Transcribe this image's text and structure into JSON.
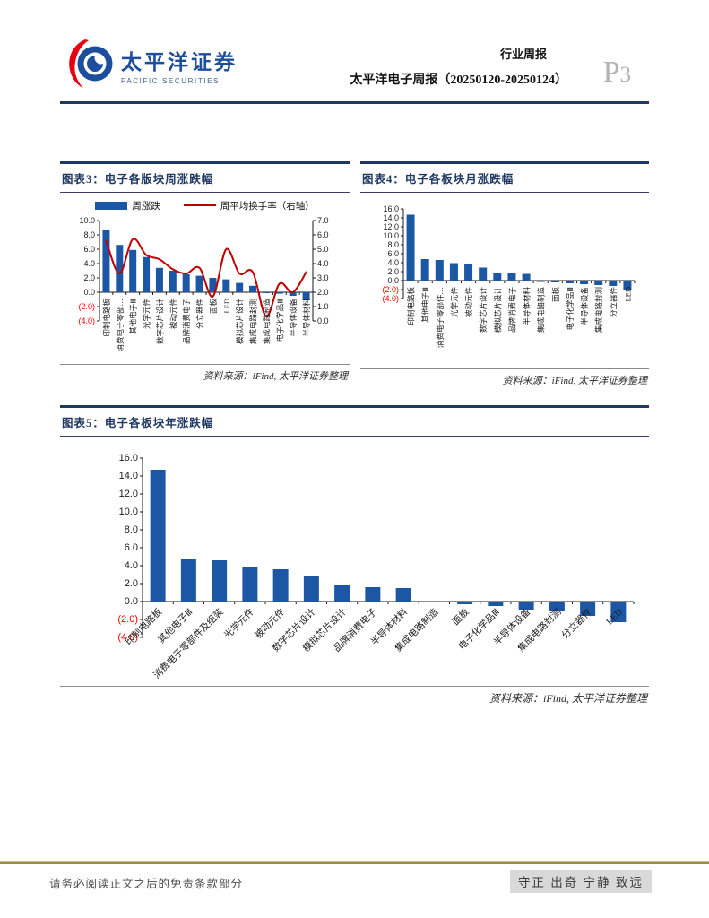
{
  "header": {
    "brand_cn": "太平洋证券",
    "brand_en": "PACIFIC SECURITIES",
    "report_type": "行业周报",
    "report_title": "太平洋电子周报（20250120-20250124）",
    "page_label": "P",
    "page_number": "3"
  },
  "footer": {
    "disclaimer": "请务必阅读正文之后的免责条款部分",
    "motto": "守正 出奇 宁静 致远"
  },
  "colors": {
    "bar_blue": "#1c57a5",
    "line_red": "#c00000",
    "axis_black": "#1a1a1a",
    "negative_label_red": "#ff0000",
    "title_navy": "#1f3864",
    "footer_gold": "#9a8b4a"
  },
  "chart_data": [
    {
      "id": "c3",
      "type": "bar",
      "title": "图表3：电子各版块周涨跌幅",
      "legend": [
        {
          "label": "周涨跌",
          "type": "bar",
          "color": "#1c57a5"
        },
        {
          "label": "周平均换手率（右轴）",
          "type": "line",
          "color": "#c00000"
        }
      ],
      "categories": [
        "印制电路板",
        "消费电子零部…",
        "其他电子Ⅲ",
        "光学元件",
        "数字芯片设计",
        "被动元件",
        "品牌消费电子",
        "分立器件",
        "面板",
        "LED",
        "模拟芯片设计",
        "集成电路封测",
        "集成电路制造",
        "电子化学品Ⅲ",
        "半导体设备",
        "半导体材料"
      ],
      "bars": [
        8.7,
        6.6,
        5.9,
        4.9,
        3.4,
        3.0,
        2.5,
        2.3,
        2.0,
        1.8,
        1.3,
        0.9,
        -0.1,
        -0.2,
        -0.5,
        -1.1
      ],
      "line": [
        5.6,
        3.3,
        5.7,
        4.6,
        4.3,
        3.6,
        3.3,
        3.7,
        1.7,
        5.0,
        3.3,
        3.4,
        0.3,
        2.6,
        2.0,
        3.4
      ],
      "left_axis": {
        "min": -4,
        "max": 10,
        "step": 2
      },
      "right_axis": {
        "min": 0,
        "max": 7,
        "step": 1
      },
      "source": "资料来源：iFind, 太平洋证券整理"
    },
    {
      "id": "c4",
      "type": "bar",
      "title": "图表4：电子各板块月涨跌幅",
      "categories": [
        "印制电路板",
        "其他电子Ⅲ",
        "消费电子零部件…",
        "光学元件",
        "被动元件",
        "数字芯片设计",
        "模拟芯片设计",
        "品牌消费电子",
        "半导体材料",
        "集成电路制造",
        "面板",
        "电子化学品Ⅲ",
        "半导体设备",
        "集成电路封测",
        "分立器件",
        "LED"
      ],
      "bars": [
        14.7,
        4.8,
        4.6,
        3.9,
        3.7,
        2.9,
        1.8,
        1.7,
        1.5,
        -0.3,
        -0.4,
        -0.6,
        -0.8,
        -1.0,
        -1.2,
        -2.1
      ],
      "left_axis": {
        "min": -4,
        "max": 16,
        "step": 2
      },
      "source": "资料来源：iFind, 太平洋证券整理"
    },
    {
      "id": "c5",
      "type": "bar",
      "title": "图表5：电子各板块年涨跌幅",
      "categories": [
        "印制电路板",
        "其他电子Ⅲ",
        "消费电子零部件及组装",
        "光学元件",
        "被动元件",
        "数字芯片设计",
        "模拟芯片设计",
        "品牌消费电子",
        "半导体材料",
        "集成电路制造",
        "面板",
        "电子化学品Ⅲ",
        "半导体设备",
        "集成电路封测",
        "分立器件",
        "LED"
      ],
      "bars": [
        14.7,
        4.7,
        4.6,
        3.9,
        3.6,
        2.8,
        1.8,
        1.6,
        1.5,
        -0.1,
        -0.3,
        -0.5,
        -0.9,
        -1.1,
        -1.6,
        -2.3
      ],
      "left_axis": {
        "min": -4,
        "max": 16,
        "step": 2
      },
      "source": "资料来源：iFind, 太平洋证券整理"
    }
  ]
}
